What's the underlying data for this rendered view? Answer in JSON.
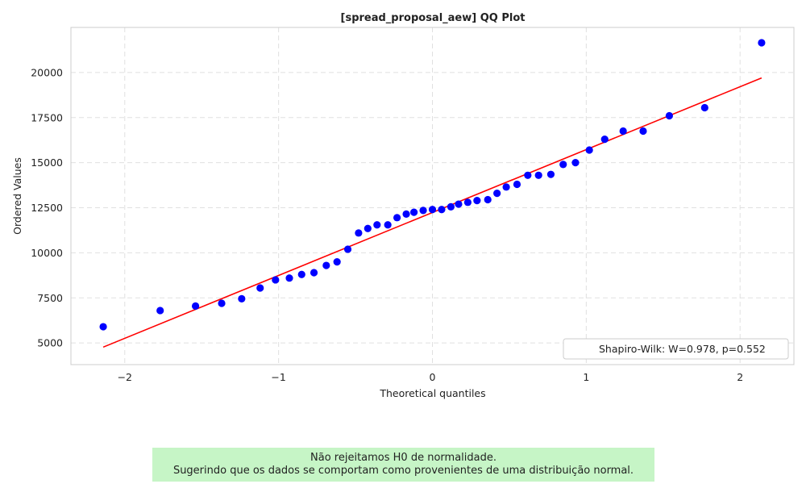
{
  "chart_data": {
    "type": "scatter",
    "title": "[spread_proposal_aew] QQ Plot",
    "xlabel": "Theoretical quantiles",
    "ylabel": "Ordered Values",
    "xlim": [
      -2.35,
      2.35
    ],
    "ylim": [
      3800,
      22500
    ],
    "x_ticks": [
      -2,
      -1,
      0,
      1,
      2
    ],
    "x_tick_labels": [
      "−2",
      "−1",
      "0",
      "1",
      "2"
    ],
    "y_ticks": [
      5000,
      7500,
      10000,
      12500,
      15000,
      17500,
      20000
    ],
    "y_tick_labels": [
      "5000",
      "7500",
      "10000",
      "12500",
      "15000",
      "17500",
      "20000"
    ],
    "grid": true,
    "points": {
      "color": "#0000ff",
      "x": [
        -2.14,
        -1.77,
        -1.54,
        -1.37,
        -1.24,
        -1.12,
        -1.02,
        -0.93,
        -0.85,
        -0.77,
        -0.69,
        -0.62,
        -0.55,
        -0.48,
        -0.42,
        -0.36,
        -0.29,
        -0.23,
        -0.17,
        -0.12,
        -0.06,
        0.0,
        0.06,
        0.12,
        0.17,
        0.23,
        0.29,
        0.36,
        0.42,
        0.48,
        0.55,
        0.62,
        0.69,
        0.77,
        0.85,
        0.93,
        1.02,
        1.12,
        1.24,
        1.37,
        1.54,
        1.77,
        2.14
      ],
      "y": [
        5900,
        6800,
        7050,
        7200,
        7450,
        8050,
        8500,
        8600,
        8800,
        8900,
        9300,
        9500,
        10200,
        11100,
        11350,
        11550,
        11550,
        11950,
        12150,
        12250,
        12350,
        12400,
        12400,
        12550,
        12700,
        12800,
        12900,
        12950,
        13300,
        13650,
        13800,
        14300,
        14300,
        14350,
        14900,
        15000,
        15700,
        16300,
        16750,
        16750,
        17600,
        18050,
        21650
      ]
    },
    "fit_line": {
      "color": "#ff0000",
      "x": [
        -2.14,
        2.14
      ],
      "y": [
        4770,
        19700
      ]
    },
    "legend": {
      "position": "lower-right",
      "entries": [
        "Shapiro-Wilk: W=0.978, p=0.552"
      ]
    }
  },
  "note": {
    "line1": "Não rejeitamos H0 de normalidade.",
    "line2": "Sugerindo que os dados se comportam como provenientes de uma distribuição normal.",
    "background": "#c6f5c6"
  }
}
